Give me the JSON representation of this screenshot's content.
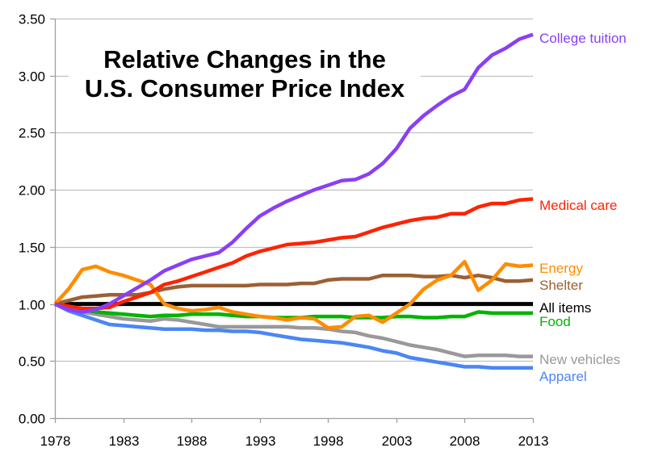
{
  "chart_data": {
    "type": "line",
    "title": [
      "Relative Changes in the",
      "U.S. Consumer Price Index"
    ],
    "xlabel": "",
    "ylabel": "",
    "xlim": [
      1978,
      2013
    ],
    "ylim": [
      0,
      3.5
    ],
    "x_ticks": [
      1978,
      1983,
      1988,
      1993,
      1998,
      2003,
      2008,
      2013
    ],
    "x_tick_labels": [
      "1978",
      "1983",
      "1988",
      "1993",
      "1998",
      "2003",
      "2008",
      "2013"
    ],
    "y_ticks": [
      0,
      0.5,
      1,
      1.5,
      2,
      2.5,
      3,
      3.5
    ],
    "y_tick_labels": [
      "0.00",
      "0.50",
      "1.00",
      "1.50",
      "2.00",
      "2.50",
      "3.00",
      "3.50"
    ],
    "grid": "horizontal",
    "legend": "direct labels at right end of lines",
    "x": [
      1978,
      1979,
      1980,
      1981,
      1982,
      1983,
      1984,
      1985,
      1986,
      1987,
      1988,
      1989,
      1990,
      1991,
      1992,
      1993,
      1994,
      1995,
      1996,
      1997,
      1998,
      1999,
      2000,
      2001,
      2002,
      2003,
      2004,
      2005,
      2006,
      2007,
      2008,
      2009,
      2010,
      2011,
      2012,
      2013
    ],
    "series": [
      {
        "name": "College tuition",
        "color": "#8a3ff5",
        "values": [
          1.0,
          0.95,
          0.93,
          0.95,
          1.0,
          1.07,
          1.14,
          1.21,
          1.29,
          1.34,
          1.39,
          1.42,
          1.45,
          1.54,
          1.66,
          1.77,
          1.84,
          1.9,
          1.95,
          2.0,
          2.04,
          2.08,
          2.09,
          2.14,
          2.23,
          2.36,
          2.54,
          2.65,
          2.74,
          2.82,
          2.88,
          3.07,
          3.18,
          3.24,
          3.32,
          3.36
        ]
      },
      {
        "name": "Medical care",
        "color": "#ff2200",
        "values": [
          1.0,
          0.98,
          0.96,
          0.96,
          0.97,
          1.02,
          1.06,
          1.1,
          1.17,
          1.2,
          1.24,
          1.28,
          1.32,
          1.36,
          1.42,
          1.46,
          1.49,
          1.52,
          1.53,
          1.54,
          1.56,
          1.58,
          1.59,
          1.63,
          1.67,
          1.7,
          1.73,
          1.75,
          1.76,
          1.79,
          1.79,
          1.85,
          1.88,
          1.88,
          1.91,
          1.92
        ]
      },
      {
        "name": "Energy",
        "color": "#ff8c00",
        "values": [
          1.0,
          1.13,
          1.3,
          1.33,
          1.28,
          1.25,
          1.21,
          1.17,
          1.0,
          0.96,
          0.94,
          0.95,
          0.97,
          0.93,
          0.91,
          0.89,
          0.88,
          0.86,
          0.88,
          0.87,
          0.79,
          0.8,
          0.89,
          0.9,
          0.84,
          0.92,
          1.0,
          1.13,
          1.21,
          1.25,
          1.37,
          1.12,
          1.21,
          1.35,
          1.33,
          1.34
        ]
      },
      {
        "name": "Shelter",
        "color": "#9b6035",
        "values": [
          1.0,
          1.03,
          1.06,
          1.07,
          1.08,
          1.08,
          1.08,
          1.1,
          1.13,
          1.15,
          1.16,
          1.16,
          1.16,
          1.16,
          1.16,
          1.17,
          1.17,
          1.17,
          1.18,
          1.18,
          1.21,
          1.22,
          1.22,
          1.22,
          1.25,
          1.25,
          1.25,
          1.24,
          1.24,
          1.25,
          1.23,
          1.25,
          1.23,
          1.2,
          1.2,
          1.21
        ]
      },
      {
        "name": "All items",
        "color": "#000000",
        "values": [
          1,
          1,
          1,
          1,
          1,
          1,
          1,
          1,
          1,
          1,
          1,
          1,
          1,
          1,
          1,
          1,
          1,
          1,
          1,
          1,
          1,
          1,
          1,
          1,
          1,
          1,
          1,
          1,
          1,
          1,
          1,
          1,
          1,
          1,
          1,
          1
        ]
      },
      {
        "name": "Food",
        "color": "#00b400",
        "values": [
          1.0,
          0.97,
          0.95,
          0.93,
          0.92,
          0.91,
          0.9,
          0.89,
          0.9,
          0.9,
          0.91,
          0.91,
          0.91,
          0.9,
          0.89,
          0.89,
          0.88,
          0.88,
          0.88,
          0.89,
          0.89,
          0.89,
          0.88,
          0.88,
          0.88,
          0.89,
          0.89,
          0.88,
          0.88,
          0.89,
          0.89,
          0.93,
          0.92,
          0.92,
          0.92,
          0.92
        ]
      },
      {
        "name": "New vehicles",
        "color": "#999999",
        "values": [
          1.0,
          0.96,
          0.93,
          0.91,
          0.89,
          0.87,
          0.86,
          0.85,
          0.87,
          0.86,
          0.84,
          0.82,
          0.8,
          0.8,
          0.8,
          0.8,
          0.8,
          0.8,
          0.79,
          0.79,
          0.78,
          0.76,
          0.75,
          0.72,
          0.7,
          0.67,
          0.64,
          0.62,
          0.6,
          0.57,
          0.54,
          0.55,
          0.55,
          0.55,
          0.54,
          0.54
        ]
      },
      {
        "name": "Apparel",
        "color": "#4a86f5",
        "values": [
          1.0,
          0.94,
          0.9,
          0.86,
          0.82,
          0.81,
          0.8,
          0.79,
          0.78,
          0.78,
          0.78,
          0.77,
          0.77,
          0.76,
          0.76,
          0.75,
          0.73,
          0.71,
          0.69,
          0.68,
          0.67,
          0.66,
          0.64,
          0.62,
          0.59,
          0.57,
          0.53,
          0.51,
          0.49,
          0.47,
          0.45,
          0.45,
          0.44,
          0.44,
          0.44,
          0.44
        ]
      }
    ]
  }
}
